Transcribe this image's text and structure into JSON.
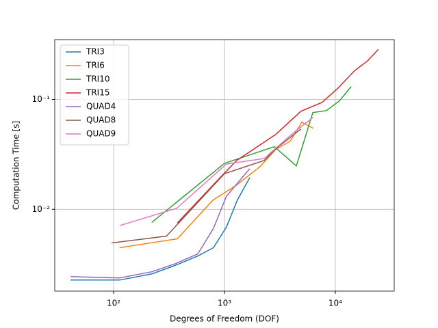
{
  "chart_data": {
    "type": "line",
    "xlabel": "Degrees of Freedom (DOF)",
    "ylabel": "Computation Time [s]",
    "xscale": "log",
    "yscale": "log",
    "grid": true,
    "legend": "upper left",
    "xlim": [
      29.4,
      34000
    ],
    "ylim": [
      0.0018,
      0.35
    ],
    "xticks": [
      {
        "value": 100,
        "label": "10²"
      },
      {
        "value": 1000,
        "label": "10³"
      },
      {
        "value": 10000,
        "label": "10⁴"
      }
    ],
    "yticks": [
      {
        "value": 0.01,
        "label": "10⁻²"
      },
      {
        "value": 0.1,
        "label": "10⁻¹"
      }
    ],
    "series": [
      {
        "name": "TRI3",
        "color": "#1f77b4",
        "x": [
          40.8,
          113,
          221,
          370,
          575,
          795,
          1040,
          1310,
          1690
        ],
        "values": [
          0.00227,
          0.00227,
          0.00258,
          0.00312,
          0.00376,
          0.00447,
          0.00688,
          0.0122,
          0.0194
        ]
      },
      {
        "name": "TRI6",
        "color": "#ff7f0e",
        "x": [
          113,
          375,
          786,
          1275,
          2090,
          2900,
          3900,
          4990,
          6330
        ],
        "values": [
          0.00447,
          0.00538,
          0.0121,
          0.0165,
          0.0244,
          0.035,
          0.0416,
          0.062,
          0.0546
        ]
      },
      {
        "name": "TRI10",
        "color": "#2ca02c",
        "x": [
          221,
          1000,
          2820,
          4450,
          6270,
          8300,
          10900,
          13900
        ],
        "values": [
          0.0076,
          0.0262,
          0.0371,
          0.0248,
          0.076,
          0.079,
          0.097,
          0.131
        ]
      },
      {
        "name": "TRI15",
        "color": "#d62728",
        "x": [
          375,
          1000,
          1290,
          2900,
          4900,
          7600,
          10700,
          14700,
          19500,
          24400
        ],
        "values": [
          0.0075,
          0.0214,
          0.0278,
          0.048,
          0.078,
          0.094,
          0.128,
          0.18,
          0.224,
          0.285
        ]
      },
      {
        "name": "QUAD4",
        "color": "#9467bd",
        "x": [
          40.8,
          113,
          221,
          364,
          575,
          795,
          1040,
          1310,
          1690
        ],
        "values": [
          0.00244,
          0.00237,
          0.0027,
          0.00321,
          0.00393,
          0.0067,
          0.0131,
          0.0173,
          0.0234
        ]
      },
      {
        "name": "QUAD8",
        "color": "#8c564b",
        "x": [
          96,
          300,
          1000,
          2280,
          2900,
          4900
        ],
        "values": [
          0.00494,
          0.0057,
          0.0211,
          0.0278,
          0.0355,
          0.0538
        ]
      },
      {
        "name": "QUAD9",
        "color": "#e377c2",
        "x": [
          113,
          370,
          1040,
          2280,
          4100,
          6330
        ],
        "values": [
          0.0071,
          0.0102,
          0.0258,
          0.029,
          0.0488,
          0.069
        ]
      }
    ]
  }
}
